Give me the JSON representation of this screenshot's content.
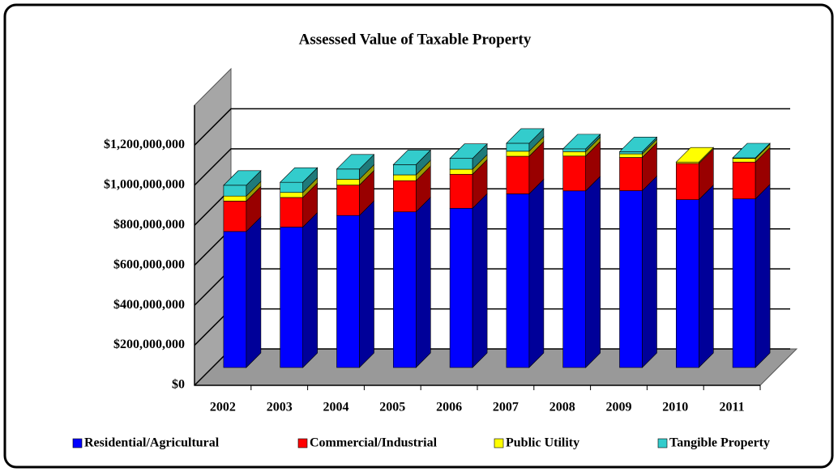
{
  "chart_data": {
    "type": "bar3d_stacked",
    "title": "Assessed Value of Taxable Property",
    "categories": [
      "2002",
      "2003",
      "2004",
      "2005",
      "2006",
      "2007",
      "2008",
      "2009",
      "2010",
      "2011"
    ],
    "series": [
      {
        "name": "Residential/Agricultural",
        "color": "#0000ff",
        "values": [
          680000000,
          702000000,
          760000000,
          778000000,
          796000000,
          868000000,
          883000000,
          884000000,
          839000000,
          843000000
        ]
      },
      {
        "name": "Commercial/Industrial",
        "color": "#ff0000",
        "values": [
          152000000,
          148000000,
          152000000,
          156000000,
          170000000,
          188000000,
          174000000,
          166000000,
          181000000,
          184000000
        ]
      },
      {
        "name": "Public Utility",
        "color": "#ffff00",
        "values": [
          25000000,
          25000000,
          29000000,
          29000000,
          25000000,
          25000000,
          22000000,
          18000000,
          7000000,
          18000000
        ]
      },
      {
        "name": "Tangible Property",
        "color": "#33cccc",
        "values": [
          54000000,
          51000000,
          51000000,
          51000000,
          54000000,
          40000000,
          14000000,
          11000000,
          0,
          3000000
        ]
      }
    ],
    "ylim": [
      0,
      1400000000
    ],
    "yticks": [
      {
        "value": 0,
        "label": "$0"
      },
      {
        "value": 200000000,
        "label": "$200,000,000"
      },
      {
        "value": 400000000,
        "label": "$400,000,000"
      },
      {
        "value": 600000000,
        "label": "$600,000,000"
      },
      {
        "value": 800000000,
        "label": "$800,000,000"
      },
      {
        "value": 1000000000,
        "label": "$1,000,000,000"
      },
      {
        "value": 1200000000,
        "label": "$1,200,000,000"
      }
    ],
    "grid": true,
    "legend": "bottom"
  }
}
